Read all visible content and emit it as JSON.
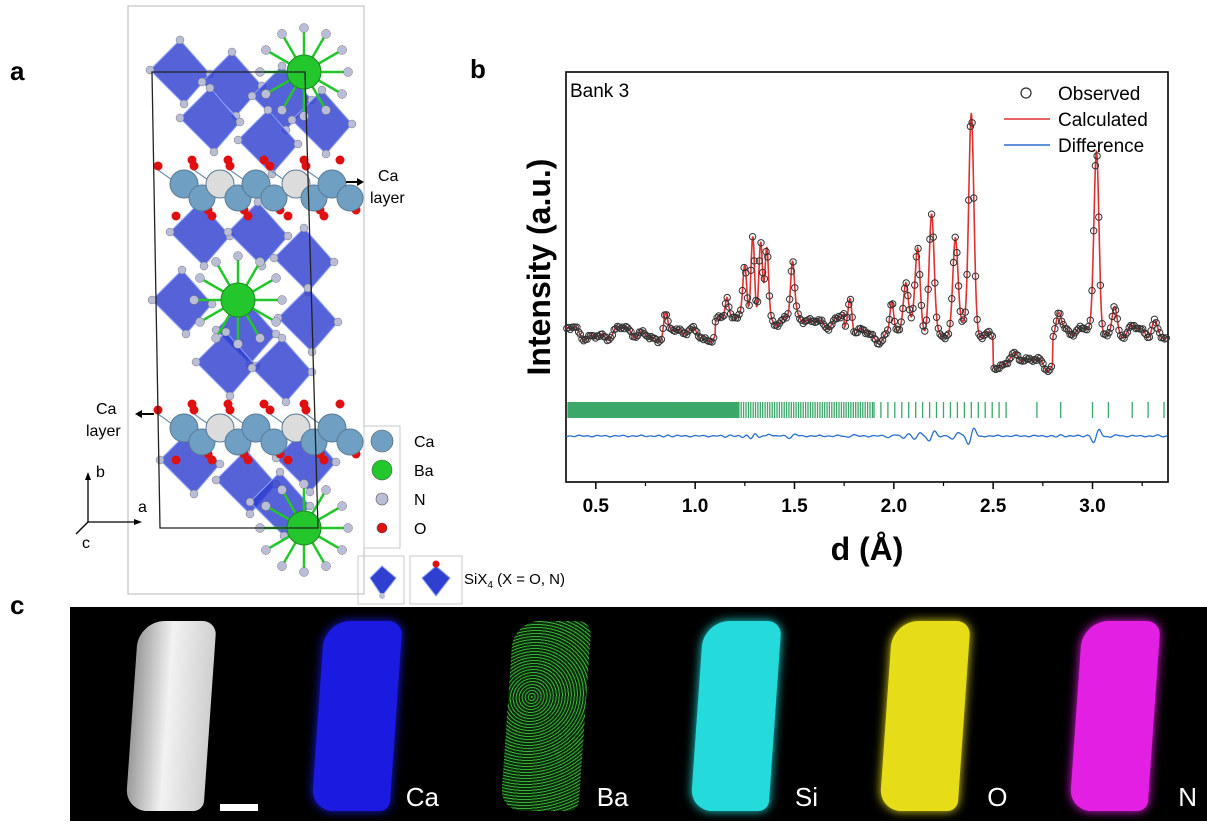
{
  "panels": {
    "a": "a",
    "b": "b",
    "c": "c"
  },
  "structure": {
    "layer_label_top": [
      "Ca",
      "layer"
    ],
    "layer_label_bottom": [
      "Ca",
      "layer"
    ],
    "axes": {
      "b": "b",
      "a": "a",
      "c": "c"
    },
    "legend": [
      {
        "label": "Ca",
        "color": "#6f9fc2"
      },
      {
        "label": "Ba",
        "color": "#23c62b"
      },
      {
        "label": "N",
        "color": "#b9bdd6"
      },
      {
        "label": "O",
        "color": "#e01010"
      }
    ],
    "tetra_legend": "SiX",
    "tetra_sub": "4",
    "tetra_rest": " (X = O, N)",
    "colors": {
      "tetra": "#2f3fd0",
      "ca": "#6f9fc2",
      "ba": "#23c62b",
      "n": "#b9bdd6",
      "o": "#e01010"
    }
  },
  "chart_data": {
    "type": "line",
    "annotation": "Bank 3",
    "xlabel": "d (Å)",
    "ylabel": "Intensity (a.u.)",
    "xlim": [
      0.35,
      3.38
    ],
    "xticks": [
      "0.5",
      "1.0",
      "1.5",
      "2.0",
      "2.5",
      "3.0"
    ],
    "xtick_values": [
      0.5,
      1.0,
      1.5,
      2.0,
      2.5,
      3.0
    ],
    "legend_position": "top-right",
    "series": [
      {
        "name": "Observed",
        "color": "#333333",
        "style": "open-circle"
      },
      {
        "name": "Calculated",
        "color": "#e03030",
        "style": "line"
      },
      {
        "name": "Difference",
        "color": "#2a6fd0",
        "style": "line"
      }
    ],
    "reflection_color": "#3aa868",
    "peaks": [
      {
        "x": 2.39,
        "height": 0.95
      },
      {
        "x": 3.02,
        "height": 0.82
      },
      {
        "x": 2.19,
        "height": 0.55
      },
      {
        "x": 2.31,
        "height": 0.42
      },
      {
        "x": 2.12,
        "height": 0.36
      },
      {
        "x": 2.06,
        "height": 0.22
      },
      {
        "x": 1.29,
        "height": 0.38
      },
      {
        "x": 1.33,
        "height": 0.36
      },
      {
        "x": 1.36,
        "height": 0.32
      },
      {
        "x": 1.25,
        "height": 0.2
      },
      {
        "x": 1.49,
        "height": 0.22
      },
      {
        "x": 1.78,
        "height": 0.14
      },
      {
        "x": 1.99,
        "height": 0.14
      },
      {
        "x": 2.83,
        "height": 0.1
      },
      {
        "x": 3.11,
        "height": 0.12
      },
      {
        "x": 3.31,
        "height": 0.06
      },
      {
        "x": 0.85,
        "height": 0.08
      },
      {
        "x": 1.16,
        "height": 0.1
      }
    ]
  },
  "maps": [
    {
      "label": "",
      "color": "#d8d8d8"
    },
    {
      "label": "Ca",
      "color": "#1a1ae0"
    },
    {
      "label": "Ba",
      "color": "#3ec43e"
    },
    {
      "label": "Si",
      "color": "#24dada"
    },
    {
      "label": "O",
      "color": "#e6dc18"
    },
    {
      "label": "N",
      "color": "#e21fe2"
    }
  ]
}
